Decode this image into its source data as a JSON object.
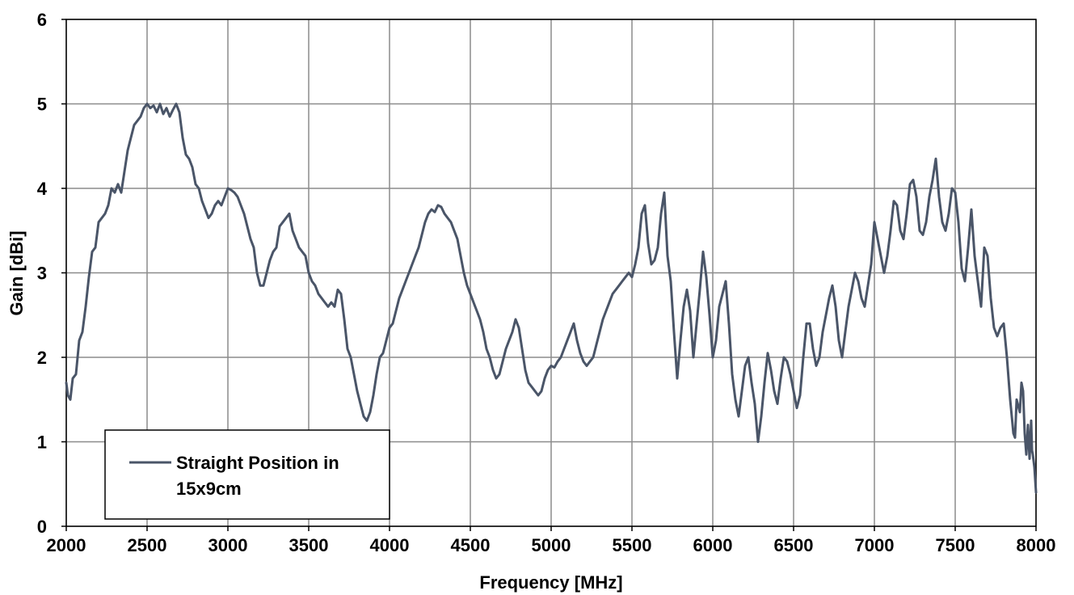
{
  "chart_data": {
    "type": "line",
    "title": "",
    "xlabel": "Frequency [MHz]",
    "ylabel": "Gain [dBi]",
    "xlim": [
      2000,
      8000
    ],
    "ylim": [
      0,
      6
    ],
    "x_ticks": [
      "2000",
      "2500",
      "3000",
      "3500",
      "4000",
      "4500",
      "5000",
      "5500",
      "6000",
      "6500",
      "7000",
      "7500",
      "8000"
    ],
    "y_ticks": [
      "0",
      "1",
      "2",
      "3",
      "4",
      "5",
      "6"
    ],
    "grid": true,
    "legend_position": "bottom-left",
    "series": [
      {
        "name": "Straight Position in 15x9cm",
        "legend_lines": [
          "Straight Position in",
          "15x9cm"
        ],
        "color": "#4a5568",
        "points": [
          [
            2000,
            1.7
          ],
          [
            2010,
            1.55
          ],
          [
            2025,
            1.5
          ],
          [
            2040,
            1.75
          ],
          [
            2060,
            1.8
          ],
          [
            2080,
            2.2
          ],
          [
            2100,
            2.3
          ],
          [
            2120,
            2.6
          ],
          [
            2140,
            2.95
          ],
          [
            2160,
            3.25
          ],
          [
            2180,
            3.3
          ],
          [
            2200,
            3.6
          ],
          [
            2220,
            3.65
          ],
          [
            2240,
            3.7
          ],
          [
            2260,
            3.8
          ],
          [
            2280,
            4.0
          ],
          [
            2300,
            3.95
          ],
          [
            2320,
            4.05
          ],
          [
            2340,
            3.95
          ],
          [
            2360,
            4.2
          ],
          [
            2380,
            4.45
          ],
          [
            2400,
            4.6
          ],
          [
            2420,
            4.75
          ],
          [
            2440,
            4.8
          ],
          [
            2460,
            4.85
          ],
          [
            2480,
            4.95
          ],
          [
            2500,
            5.0
          ],
          [
            2520,
            4.95
          ],
          [
            2540,
            4.98
          ],
          [
            2560,
            4.9
          ],
          [
            2580,
            5.0
          ],
          [
            2600,
            4.88
          ],
          [
            2620,
            4.95
          ],
          [
            2640,
            4.85
          ],
          [
            2660,
            4.93
          ],
          [
            2680,
            5.0
          ],
          [
            2700,
            4.9
          ],
          [
            2720,
            4.6
          ],
          [
            2740,
            4.4
          ],
          [
            2760,
            4.35
          ],
          [
            2780,
            4.25
          ],
          [
            2800,
            4.05
          ],
          [
            2820,
            4.0
          ],
          [
            2840,
            3.85
          ],
          [
            2860,
            3.75
          ],
          [
            2880,
            3.65
          ],
          [
            2900,
            3.7
          ],
          [
            2920,
            3.8
          ],
          [
            2940,
            3.85
          ],
          [
            2960,
            3.8
          ],
          [
            2980,
            3.9
          ],
          [
            3000,
            4.0
          ],
          [
            3020,
            3.98
          ],
          [
            3040,
            3.95
          ],
          [
            3060,
            3.9
          ],
          [
            3080,
            3.8
          ],
          [
            3100,
            3.7
          ],
          [
            3120,
            3.55
          ],
          [
            3140,
            3.4
          ],
          [
            3160,
            3.3
          ],
          [
            3180,
            3.0
          ],
          [
            3200,
            2.85
          ],
          [
            3220,
            2.85
          ],
          [
            3240,
            3.0
          ],
          [
            3260,
            3.15
          ],
          [
            3280,
            3.25
          ],
          [
            3300,
            3.3
          ],
          [
            3320,
            3.55
          ],
          [
            3340,
            3.6
          ],
          [
            3360,
            3.65
          ],
          [
            3380,
            3.7
          ],
          [
            3400,
            3.5
          ],
          [
            3420,
            3.4
          ],
          [
            3440,
            3.3
          ],
          [
            3460,
            3.25
          ],
          [
            3480,
            3.2
          ],
          [
            3500,
            3.0
          ],
          [
            3520,
            2.9
          ],
          [
            3540,
            2.85
          ],
          [
            3560,
            2.75
          ],
          [
            3580,
            2.7
          ],
          [
            3600,
            2.65
          ],
          [
            3620,
            2.6
          ],
          [
            3640,
            2.65
          ],
          [
            3660,
            2.6
          ],
          [
            3680,
            2.8
          ],
          [
            3700,
            2.75
          ],
          [
            3720,
            2.45
          ],
          [
            3740,
            2.1
          ],
          [
            3760,
            2.0
          ],
          [
            3780,
            1.8
          ],
          [
            3800,
            1.6
          ],
          [
            3820,
            1.45
          ],
          [
            3840,
            1.3
          ],
          [
            3860,
            1.25
          ],
          [
            3880,
            1.35
          ],
          [
            3900,
            1.55
          ],
          [
            3920,
            1.8
          ],
          [
            3940,
            2.0
          ],
          [
            3960,
            2.05
          ],
          [
            3980,
            2.2
          ],
          [
            4000,
            2.35
          ],
          [
            4020,
            2.4
          ],
          [
            4040,
            2.55
          ],
          [
            4060,
            2.7
          ],
          [
            4080,
            2.8
          ],
          [
            4100,
            2.9
          ],
          [
            4120,
            3.0
          ],
          [
            4140,
            3.1
          ],
          [
            4160,
            3.2
          ],
          [
            4180,
            3.3
          ],
          [
            4200,
            3.45
          ],
          [
            4220,
            3.6
          ],
          [
            4240,
            3.7
          ],
          [
            4260,
            3.75
          ],
          [
            4280,
            3.72
          ],
          [
            4300,
            3.8
          ],
          [
            4320,
            3.78
          ],
          [
            4340,
            3.7
          ],
          [
            4360,
            3.65
          ],
          [
            4380,
            3.6
          ],
          [
            4400,
            3.5
          ],
          [
            4420,
            3.4
          ],
          [
            4440,
            3.2
          ],
          [
            4460,
            3.0
          ],
          [
            4480,
            2.85
          ],
          [
            4500,
            2.75
          ],
          [
            4520,
            2.65
          ],
          [
            4540,
            2.55
          ],
          [
            4560,
            2.45
          ],
          [
            4580,
            2.3
          ],
          [
            4600,
            2.1
          ],
          [
            4620,
            2.0
          ],
          [
            4640,
            1.85
          ],
          [
            4660,
            1.75
          ],
          [
            4680,
            1.8
          ],
          [
            4700,
            1.95
          ],
          [
            4720,
            2.1
          ],
          [
            4740,
            2.2
          ],
          [
            4760,
            2.3
          ],
          [
            4780,
            2.45
          ],
          [
            4800,
            2.35
          ],
          [
            4820,
            2.1
          ],
          [
            4840,
            1.85
          ],
          [
            4860,
            1.7
          ],
          [
            4880,
            1.65
          ],
          [
            4900,
            1.6
          ],
          [
            4920,
            1.55
          ],
          [
            4940,
            1.6
          ],
          [
            4960,
            1.75
          ],
          [
            4980,
            1.85
          ],
          [
            5000,
            1.9
          ],
          [
            5020,
            1.88
          ],
          [
            5040,
            1.95
          ],
          [
            5060,
            2.0
          ],
          [
            5080,
            2.1
          ],
          [
            5100,
            2.2
          ],
          [
            5120,
            2.3
          ],
          [
            5140,
            2.4
          ],
          [
            5160,
            2.2
          ],
          [
            5180,
            2.05
          ],
          [
            5200,
            1.95
          ],
          [
            5220,
            1.9
          ],
          [
            5240,
            1.95
          ],
          [
            5260,
            2.0
          ],
          [
            5280,
            2.15
          ],
          [
            5300,
            2.3
          ],
          [
            5320,
            2.45
          ],
          [
            5340,
            2.55
          ],
          [
            5360,
            2.65
          ],
          [
            5380,
            2.75
          ],
          [
            5400,
            2.8
          ],
          [
            5420,
            2.85
          ],
          [
            5440,
            2.9
          ],
          [
            5460,
            2.95
          ],
          [
            5480,
            3.0
          ],
          [
            5500,
            2.95
          ],
          [
            5520,
            3.1
          ],
          [
            5540,
            3.3
          ],
          [
            5560,
            3.7
          ],
          [
            5580,
            3.8
          ],
          [
            5600,
            3.35
          ],
          [
            5620,
            3.1
          ],
          [
            5640,
            3.15
          ],
          [
            5660,
            3.3
          ],
          [
            5680,
            3.7
          ],
          [
            5700,
            3.95
          ],
          [
            5720,
            3.2
          ],
          [
            5740,
            2.9
          ],
          [
            5760,
            2.3
          ],
          [
            5780,
            1.75
          ],
          [
            5800,
            2.2
          ],
          [
            5820,
            2.6
          ],
          [
            5840,
            2.8
          ],
          [
            5860,
            2.55
          ],
          [
            5880,
            2.0
          ],
          [
            5900,
            2.4
          ],
          [
            5920,
            2.8
          ],
          [
            5940,
            3.25
          ],
          [
            5960,
            2.95
          ],
          [
            5980,
            2.5
          ],
          [
            6000,
            2.0
          ],
          [
            6020,
            2.2
          ],
          [
            6040,
            2.6
          ],
          [
            6060,
            2.75
          ],
          [
            6080,
            2.9
          ],
          [
            6100,
            2.4
          ],
          [
            6120,
            1.8
          ],
          [
            6140,
            1.5
          ],
          [
            6160,
            1.3
          ],
          [
            6180,
            1.6
          ],
          [
            6200,
            1.9
          ],
          [
            6220,
            2.0
          ],
          [
            6240,
            1.7
          ],
          [
            6260,
            1.45
          ],
          [
            6280,
            1.0
          ],
          [
            6300,
            1.3
          ],
          [
            6320,
            1.7
          ],
          [
            6340,
            2.05
          ],
          [
            6360,
            1.85
          ],
          [
            6380,
            1.6
          ],
          [
            6400,
            1.45
          ],
          [
            6420,
            1.75
          ],
          [
            6440,
            2.0
          ],
          [
            6460,
            1.95
          ],
          [
            6480,
            1.8
          ],
          [
            6500,
            1.6
          ],
          [
            6520,
            1.4
          ],
          [
            6540,
            1.55
          ],
          [
            6560,
            2.0
          ],
          [
            6580,
            2.4
          ],
          [
            6600,
            2.4
          ],
          [
            6620,
            2.1
          ],
          [
            6640,
            1.9
          ],
          [
            6660,
            2.0
          ],
          [
            6680,
            2.3
          ],
          [
            6700,
            2.5
          ],
          [
            6720,
            2.7
          ],
          [
            6740,
            2.85
          ],
          [
            6760,
            2.6
          ],
          [
            6780,
            2.2
          ],
          [
            6800,
            2.0
          ],
          [
            6820,
            2.3
          ],
          [
            6840,
            2.6
          ],
          [
            6860,
            2.8
          ],
          [
            6880,
            3.0
          ],
          [
            6900,
            2.9
          ],
          [
            6920,
            2.7
          ],
          [
            6940,
            2.6
          ],
          [
            6960,
            2.85
          ],
          [
            6980,
            3.1
          ],
          [
            7000,
            3.6
          ],
          [
            7020,
            3.4
          ],
          [
            7040,
            3.2
          ],
          [
            7060,
            3.0
          ],
          [
            7080,
            3.2
          ],
          [
            7100,
            3.5
          ],
          [
            7120,
            3.85
          ],
          [
            7140,
            3.8
          ],
          [
            7160,
            3.5
          ],
          [
            7180,
            3.4
          ],
          [
            7200,
            3.7
          ],
          [
            7220,
            4.05
          ],
          [
            7240,
            4.1
          ],
          [
            7260,
            3.9
          ],
          [
            7280,
            3.5
          ],
          [
            7300,
            3.45
          ],
          [
            7320,
            3.6
          ],
          [
            7340,
            3.9
          ],
          [
            7360,
            4.1
          ],
          [
            7380,
            4.35
          ],
          [
            7400,
            3.9
          ],
          [
            7420,
            3.6
          ],
          [
            7440,
            3.5
          ],
          [
            7460,
            3.7
          ],
          [
            7480,
            4.0
          ],
          [
            7500,
            3.95
          ],
          [
            7520,
            3.6
          ],
          [
            7540,
            3.05
          ],
          [
            7560,
            2.9
          ],
          [
            7580,
            3.3
          ],
          [
            7600,
            3.75
          ],
          [
            7620,
            3.2
          ],
          [
            7640,
            2.9
          ],
          [
            7660,
            2.6
          ],
          [
            7680,
            3.3
          ],
          [
            7700,
            3.2
          ],
          [
            7720,
            2.7
          ],
          [
            7740,
            2.35
          ],
          [
            7760,
            2.25
          ],
          [
            7780,
            2.35
          ],
          [
            7800,
            2.4
          ],
          [
            7820,
            2.0
          ],
          [
            7840,
            1.5
          ],
          [
            7860,
            1.1
          ],
          [
            7870,
            1.05
          ],
          [
            7880,
            1.5
          ],
          [
            7900,
            1.35
          ],
          [
            7910,
            1.7
          ],
          [
            7920,
            1.6
          ],
          [
            7930,
            1.1
          ],
          [
            7940,
            0.85
          ],
          [
            7950,
            1.2
          ],
          [
            7960,
            0.8
          ],
          [
            7970,
            1.25
          ],
          [
            7975,
            0.9
          ],
          [
            7980,
            0.85
          ],
          [
            7990,
            0.7
          ],
          [
            8000,
            0.4
          ]
        ]
      }
    ]
  }
}
